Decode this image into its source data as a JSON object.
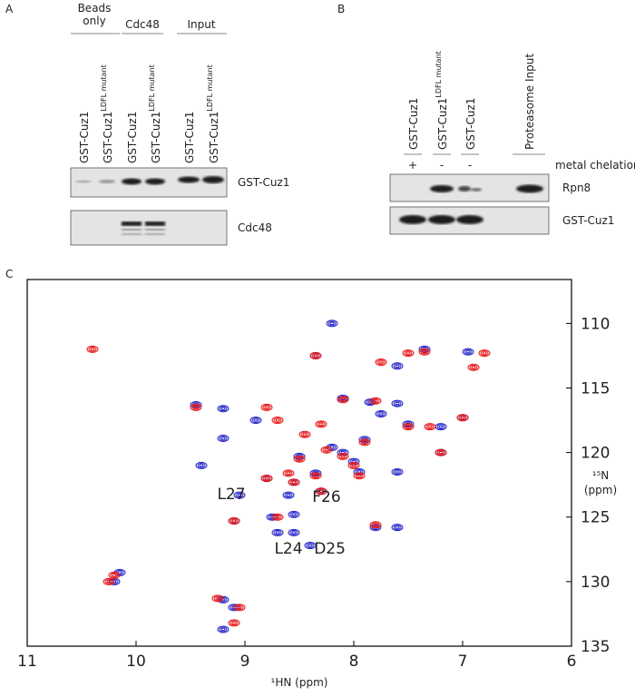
{
  "panels": {
    "A": {
      "label": "A",
      "groups": [
        [
          "Beads",
          "only"
        ],
        "Cdc48",
        "Input"
      ],
      "lanes": [
        {
          "text": "GST-Cuz1"
        },
        {
          "text": "GST-Cuz1",
          "sup": "LDFL mutant"
        },
        {
          "text": "GST-Cuz1"
        },
        {
          "text": "GST-Cuz1",
          "sup": "LDFL mutant"
        },
        {
          "text": "GST-Cuz1"
        },
        {
          "text": "GST-Cuz1",
          "sup": "LDFL mutant"
        }
      ],
      "blots": [
        "GST-Cuz1",
        "Cdc48"
      ]
    },
    "B": {
      "label": "B",
      "lanes": [
        {
          "text": "GST-Cuz1"
        },
        {
          "text": "GST-Cuz1",
          "sup": "LDFL mutant"
        },
        {
          "text": "GST-Cuz1"
        },
        {
          "text": "Proteasome Input"
        }
      ],
      "treatment": {
        "label": "metal chelation",
        "signs": [
          "+",
          "-",
          "-"
        ]
      },
      "blots": [
        "Rpn8",
        "GST-Cuz1"
      ]
    },
    "C": {
      "label": "C"
    }
  },
  "chart_data": {
    "type": "scatter",
    "x_label": "¹HN (ppm)",
    "y_label": [
      "¹⁵N",
      "(ppm)"
    ],
    "xlim": [
      11,
      6
    ],
    "xticks": [
      11,
      10,
      9,
      8,
      7,
      6
    ],
    "ylim": [
      135,
      106.6
    ],
    "yticks": [
      110,
      115,
      120,
      125,
      130,
      135
    ],
    "series": [
      {
        "color": "#2323c8",
        "x": [
          8.2,
          9.45,
          9.2,
          8.9,
          9.2,
          9.4,
          8.35,
          8.1,
          7.85,
          7.75,
          7.5,
          7.2,
          7.0,
          6.95,
          7.35,
          7.6,
          7.2,
          8.8,
          8.55,
          8.6,
          8.3,
          9.05,
          8.75,
          9.1,
          8.7,
          8.55,
          8.4,
          7.8,
          7.6,
          8.55,
          10.15,
          10.2,
          9.2,
          9.1,
          9.2,
          8.1,
          8.0,
          8.2,
          8.5,
          8.35,
          7.95,
          7.9,
          7.6,
          7.6
        ],
        "y": [
          110,
          116.3,
          116.6,
          117.5,
          118.9,
          121,
          112.5,
          115.8,
          116.1,
          117,
          117.8,
          118,
          117.3,
          112.2,
          112,
          113.3,
          120,
          122,
          122.3,
          123.3,
          123,
          123.3,
          125,
          125.3,
          126.2,
          126.2,
          127.2,
          125.8,
          125.8,
          124.8,
          129.3,
          130,
          131.4,
          132,
          133.7,
          120,
          120.7,
          119.6,
          120.3,
          121.6,
          121.5,
          119,
          116.2,
          121.5
        ]
      },
      {
        "color": "#e81515",
        "x": [
          10.4,
          9.45,
          8.8,
          8.35,
          8.1,
          7.8,
          7.75,
          7.5,
          7.35,
          6.9,
          6.8,
          7.0,
          7.3,
          7.5,
          7.2,
          8.8,
          8.55,
          8.3,
          8.7,
          9.1,
          7.8,
          10.2,
          10.25,
          9.25,
          9.05,
          9.1,
          8.1,
          8.0,
          8.25,
          8.5,
          8.35,
          7.95,
          7.9,
          8.7,
          8.45,
          8.3,
          8.6
        ],
        "y": [
          112,
          116.5,
          116.5,
          112.5,
          115.9,
          116,
          113,
          112.3,
          112.2,
          113.4,
          112.3,
          117.3,
          118,
          118,
          120,
          122,
          122.3,
          123,
          125,
          125.3,
          125.6,
          129.5,
          130,
          131.3,
          132,
          133.2,
          120.3,
          121,
          119.8,
          120.5,
          121.8,
          121.8,
          119.2,
          117.5,
          118.6,
          117.8,
          121.6
        ]
      }
    ],
    "annotations": [
      {
        "text": "L27",
        "x": 9.125,
        "y": 123.2
      },
      {
        "text": "F26",
        "x": 8.25,
        "y": 123.4
      },
      {
        "text": "L24",
        "x": 8.6,
        "y": 127.4
      },
      {
        "text": "D25",
        "x": 8.22,
        "y": 127.4
      }
    ]
  }
}
